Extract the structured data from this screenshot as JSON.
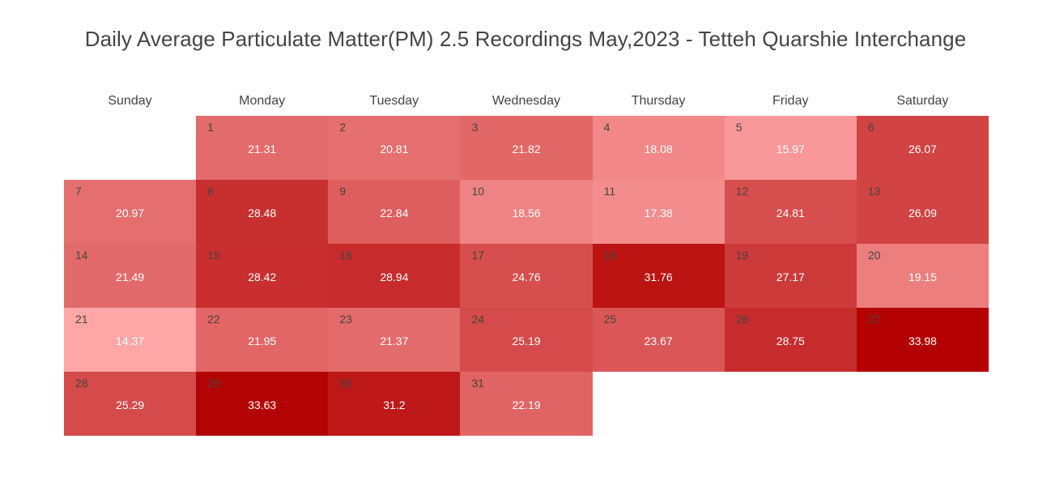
{
  "chart_data": {
    "type": "heatmap",
    "title": "Daily Average Particulate Matter(PM) 2.5 Recordings May,2023 - Tetteh Quarshie Interchange",
    "weekdays": [
      "Sunday",
      "Monday",
      "Tuesday",
      "Wednesday",
      "Thursday",
      "Friday",
      "Saturday"
    ],
    "first_weekday_index": 1,
    "days": [
      1,
      2,
      3,
      4,
      5,
      6,
      7,
      8,
      9,
      10,
      11,
      12,
      13,
      14,
      15,
      16,
      17,
      18,
      19,
      20,
      21,
      22,
      23,
      24,
      25,
      26,
      27,
      28,
      29,
      30,
      31
    ],
    "values": [
      21.31,
      20.81,
      21.82,
      18.08,
      15.97,
      26.07,
      20.97,
      28.48,
      22.84,
      18.56,
      17.38,
      24.81,
      26.09,
      21.49,
      28.42,
      28.94,
      24.76,
      31.76,
      27.17,
      19.15,
      14.37,
      21.95,
      21.37,
      25.19,
      23.67,
      28.75,
      33.98,
      25.29,
      33.63,
      31.2,
      22.19
    ],
    "color_scale": {
      "low": "#ffa6a6",
      "high": "#b30000"
    },
    "value_range": [
      14.37,
      33.98
    ]
  }
}
